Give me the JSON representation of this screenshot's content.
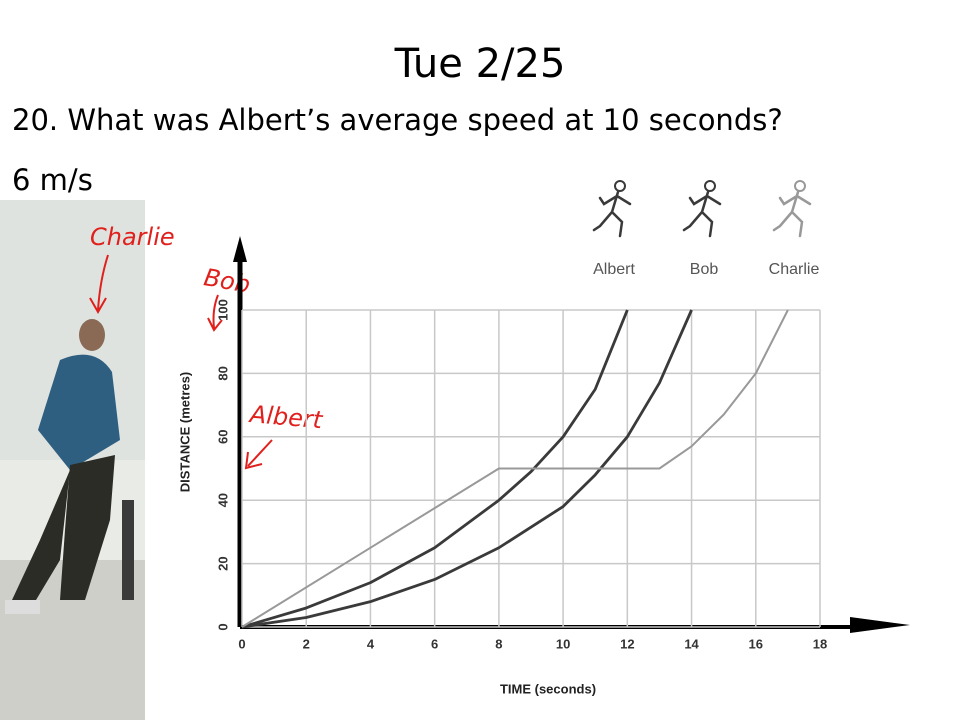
{
  "slide": {
    "title": "Tue 2/25",
    "question": "20. What was Albert’s average speed at 10 seconds?",
    "answer": "6 m/s",
    "annotations": [
      "Charlie",
      "Bob",
      "Albert"
    ]
  },
  "chart_data": {
    "type": "line",
    "xlabel": "TIME (seconds)",
    "ylabel": "DISTANCE (metres)",
    "xlim": [
      0,
      18
    ],
    "ylim": [
      0,
      100
    ],
    "xticks": [
      0,
      2,
      4,
      6,
      8,
      10,
      12,
      14,
      16,
      18
    ],
    "yticks": [
      0,
      20,
      40,
      60,
      80,
      100
    ],
    "grid": true,
    "series": [
      {
        "name": "Albert",
        "color": "#3a3a3a",
        "x": [
          0,
          2,
          4,
          6,
          8,
          9,
          10,
          11,
          12
        ],
        "values": [
          0,
          6,
          14,
          25,
          40,
          49,
          60,
          75,
          100
        ]
      },
      {
        "name": "Bob",
        "color": "#3a3a3a",
        "x": [
          0,
          2,
          4,
          6,
          8,
          10,
          11,
          12,
          13,
          14
        ],
        "values": [
          0,
          3,
          8,
          15,
          25,
          38,
          48,
          60,
          77,
          100
        ]
      },
      {
        "name": "Charlie",
        "color": "#999999",
        "x": [
          0,
          8,
          13,
          14,
          15,
          16,
          17
        ],
        "values": [
          0,
          50,
          50,
          57,
          67,
          80,
          100
        ]
      }
    ]
  }
}
